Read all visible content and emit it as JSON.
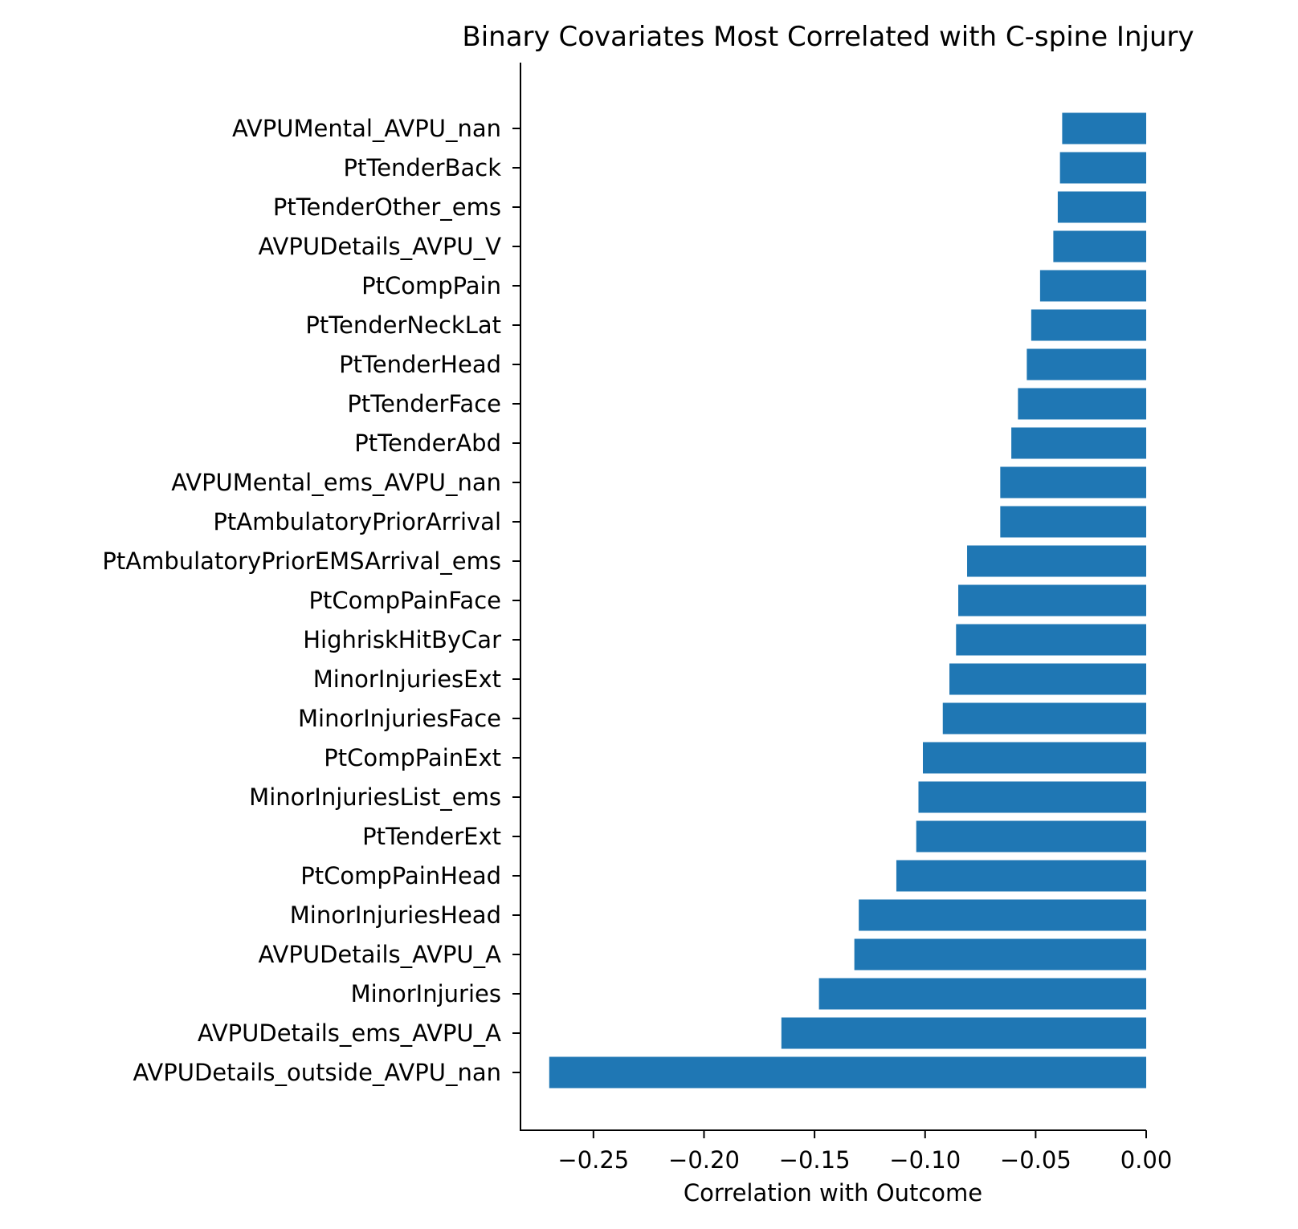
{
  "chart_data": {
    "type": "bar",
    "orientation": "horizontal",
    "title": "Binary Covariates Most Correlated with C-spine Injury",
    "xlabel": "Correlation with Outcome",
    "ylabel": "",
    "xlim": [
      -0.283,
      0.0
    ],
    "xticks": [
      -0.25,
      -0.2,
      -0.15,
      -0.1,
      -0.05,
      0.0
    ],
    "xtick_labels": [
      "−0.25",
      "−0.20",
      "−0.15",
      "−0.10",
      "−0.05",
      "0.00"
    ],
    "grid": false,
    "legend": "none",
    "bar_color": "#1f77b4",
    "categories": [
      "AVPUMental_AVPU_nan",
      "PtTenderBack",
      "PtTenderOther_ems",
      "AVPUDetails_AVPU_V",
      "PtCompPain",
      "PtTenderNeckLat",
      "PtTenderHead",
      "PtTenderFace",
      "PtTenderAbd",
      "AVPUMental_ems_AVPU_nan",
      "PtAmbulatoryPriorArrival",
      "PtAmbulatoryPriorEMSArrival_ems",
      "PtCompPainFace",
      "HighriskHitByCar",
      "MinorInjuriesExt",
      "MinorInjuriesFace",
      "PtCompPainExt",
      "MinorInjuriesList_ems",
      "PtTenderExt",
      "PtCompPainHead",
      "MinorInjuriesHead",
      "AVPUDetails_AVPU_A",
      "MinorInjuries",
      "AVPUDetails_ems_AVPU_A",
      "AVPUDetails_outside_AVPU_nan"
    ],
    "values": [
      -0.038,
      -0.039,
      -0.04,
      -0.042,
      -0.048,
      -0.052,
      -0.054,
      -0.058,
      -0.061,
      -0.066,
      -0.066,
      -0.081,
      -0.085,
      -0.086,
      -0.089,
      -0.092,
      -0.101,
      -0.103,
      -0.104,
      -0.113,
      -0.13,
      -0.132,
      -0.148,
      -0.165,
      -0.27
    ]
  }
}
